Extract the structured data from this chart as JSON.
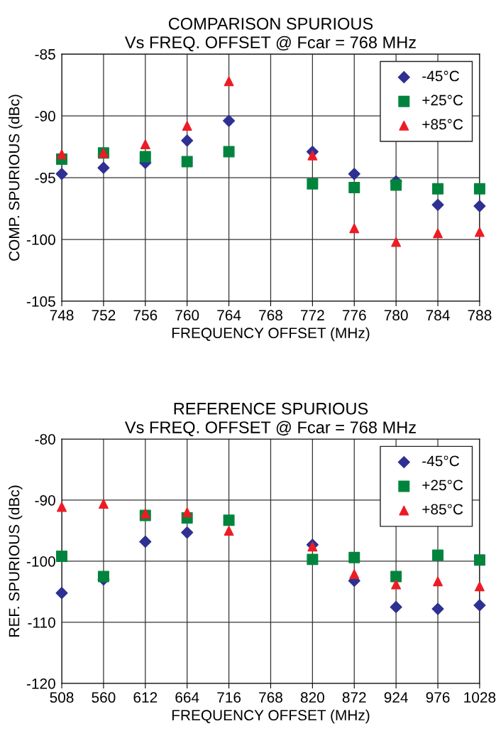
{
  "chart_data": [
    {
      "type": "scatter",
      "title": "COMPARISON SPURIOUS\nVs FREQ. OFFSET @ Fcar = 768 MHz",
      "xlabel": "FREQUENCY OFFSET (MHz)",
      "ylabel": "COMP. SPURIOUS (dBc)",
      "x": [
        748,
        752,
        756,
        760,
        764,
        772,
        776,
        780,
        784,
        788
      ],
      "series": [
        {
          "name": "-45°C",
          "color": "#2e3192",
          "marker": "diamond",
          "values": [
            -94.7,
            -94.2,
            -93.8,
            -92.0,
            -90.4,
            -92.9,
            -94.7,
            -95.3,
            -97.2,
            -97.3
          ]
        },
        {
          "name": "+25°C",
          "color": "#00843d",
          "marker": "square",
          "values": [
            -93.5,
            -93.0,
            -93.3,
            -93.7,
            -92.9,
            -95.5,
            -95.8,
            -95.6,
            -95.9,
            -95.9
          ]
        },
        {
          "name": "+85°C",
          "color": "#ed1c24",
          "marker": "triangle",
          "values": [
            -93.1,
            -93.0,
            -92.3,
            -90.8,
            -87.2,
            -93.2,
            -99.1,
            -100.2,
            -99.5,
            -99.4
          ]
        }
      ],
      "xlim": [
        748,
        788
      ],
      "xticks": [
        748,
        752,
        756,
        760,
        764,
        768,
        772,
        776,
        780,
        784,
        788
      ],
      "ylim": [
        -105,
        -85
      ],
      "yticks": [
        -105,
        -100,
        -95,
        -90,
        -85
      ],
      "grid": true,
      "legend": "top right"
    },
    {
      "type": "scatter",
      "title": "REFERENCE SPURIOUS\nVs FREQ. OFFSET @ Fcar = 768 MHz",
      "xlabel": "FREQUENCY OFFSET (MHz)",
      "ylabel": "REF. SPURIOUS (dBc)",
      "x": [
        508,
        560,
        612,
        664,
        716,
        820,
        872,
        924,
        976,
        1028
      ],
      "series": [
        {
          "name": "-45°C",
          "color": "#2e3192",
          "marker": "diamond",
          "values": [
            -105.2,
            -103.0,
            -96.8,
            -95.3,
            null,
            -97.3,
            -103.2,
            -107.5,
            -107.8,
            -107.2
          ]
        },
        {
          "name": "+25°C",
          "color": "#00843d",
          "marker": "square",
          "values": [
            -99.2,
            -102.5,
            -92.5,
            -92.9,
            -93.3,
            -99.7,
            -99.4,
            -102.5,
            -99.0,
            -99.8
          ]
        },
        {
          "name": "+85°C",
          "color": "#ed1c24",
          "marker": "triangle",
          "values": [
            -91.1,
            -90.6,
            -92.2,
            -92.0,
            -95.0,
            -97.6,
            -102.1,
            -103.8,
            -103.3,
            -104.1
          ]
        }
      ],
      "xlim": [
        508,
        1028
      ],
      "xticks": [
        508,
        560,
        612,
        664,
        716,
        768,
        820,
        872,
        924,
        976,
        1028
      ],
      "ylim": [
        -120,
        -80
      ],
      "yticks": [
        -120,
        -110,
        -100,
        -90,
        -80
      ],
      "grid": true,
      "legend": "top right"
    }
  ]
}
